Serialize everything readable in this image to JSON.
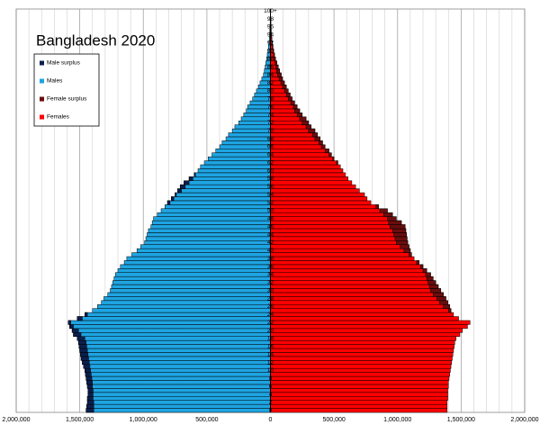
{
  "chart_data": {
    "type": "pyramid",
    "title": "Bangladesh 2020",
    "categories": [
      "0",
      null,
      "2",
      null,
      "4",
      null,
      "6",
      null,
      "8",
      null,
      "10",
      null,
      "12",
      null,
      "14",
      null,
      "16",
      null,
      "18",
      null,
      "20",
      null,
      "22",
      null,
      "24",
      null,
      "26",
      null,
      "28",
      null,
      "30",
      null,
      "32",
      null,
      "34",
      null,
      "36",
      null,
      "38",
      null,
      "40",
      null,
      "42",
      null,
      "44",
      null,
      "46",
      null,
      "48",
      null,
      "50",
      null,
      "52",
      null,
      "54",
      null,
      "56",
      null,
      "58",
      null,
      "60",
      null,
      "62",
      null,
      "64",
      null,
      "66",
      null,
      "68",
      null,
      "70",
      null,
      "72",
      null,
      "74",
      null,
      "76",
      null,
      "78",
      null,
      "80",
      null,
      "82",
      null,
      "84",
      null,
      "86",
      null,
      "88",
      null,
      "90",
      null,
      "92",
      null,
      "94",
      null,
      "96",
      null,
      "98",
      null,
      "100+"
    ],
    "series": [
      {
        "name": "Males",
        "color": "#1ea4e2",
        "side": "left",
        "surplus": {
          "name": "Male surplus",
          "color": "#0b1f4e"
        },
        "values": [
          1450000,
          1445000,
          1440000,
          1440000,
          1435000,
          1435000,
          1440000,
          1445000,
          1450000,
          1455000,
          1460000,
          1470000,
          1480000,
          1490000,
          1495000,
          1500000,
          1505000,
          1510000,
          1520000,
          1550000,
          1560000,
          1580000,
          1590000,
          1520000,
          1460000,
          1400000,
          1360000,
          1330000,
          1310000,
          1280000,
          1260000,
          1250000,
          1240000,
          1230000,
          1220000,
          1200000,
          1180000,
          1150000,
          1130000,
          1090000,
          1050000,
          1020000,
          990000,
          980000,
          970000,
          960000,
          940000,
          930000,
          920000,
          890000,
          860000,
          830000,
          810000,
          780000,
          750000,
          730000,
          710000,
          680000,
          640000,
          600000,
          570000,
          550000,
          520000,
          490000,
          460000,
          430000,
          400000,
          380000,
          350000,
          330000,
          300000,
          280000,
          250000,
          230000,
          210000,
          190000,
          180000,
          160000,
          140000,
          125000,
          110000,
          95000,
          82000,
          68000,
          55000,
          48000,
          42000,
          36000,
          30000,
          25000,
          20000,
          16000,
          12000,
          9000,
          7000,
          5000,
          3500,
          2500,
          1800,
          1200,
          1000
        ]
      },
      {
        "name": "Females",
        "color": "#ff0000",
        "side": "right",
        "surplus": {
          "name": "Female surplus",
          "color": "#6b0d0d"
        },
        "values": [
          1390000,
          1390000,
          1390000,
          1395000,
          1395000,
          1395000,
          1400000,
          1400000,
          1405000,
          1410000,
          1415000,
          1420000,
          1425000,
          1430000,
          1435000,
          1440000,
          1445000,
          1450000,
          1460000,
          1490000,
          1510000,
          1550000,
          1570000,
          1480000,
          1440000,
          1420000,
          1410000,
          1395000,
          1380000,
          1360000,
          1340000,
          1320000,
          1300000,
          1280000,
          1260000,
          1230000,
          1200000,
          1170000,
          1130000,
          1110000,
          1100000,
          1090000,
          1080000,
          1075000,
          1070000,
          1065000,
          1060000,
          1030000,
          990000,
          960000,
          920000,
          850000,
          790000,
          760000,
          740000,
          700000,
          670000,
          640000,
          610000,
          590000,
          570000,
          550000,
          530000,
          500000,
          480000,
          460000,
          430000,
          410000,
          390000,
          370000,
          350000,
          320000,
          300000,
          280000,
          250000,
          230000,
          210000,
          190000,
          170000,
          155000,
          140000,
          125000,
          110000,
          95000,
          85000,
          72000,
          62000,
          50000,
          40000,
          32000,
          25000,
          20000,
          15000,
          11000,
          8500,
          6000,
          5000,
          3500,
          2500,
          1800,
          2000
        ]
      }
    ],
    "xlim": [
      -2000000,
      2000000
    ],
    "xticks": [
      {
        "value": -2000000,
        "label": "2,000,000"
      },
      {
        "value": -1500000,
        "label": "1,500,000"
      },
      {
        "value": -1000000,
        "label": "1,000,000"
      },
      {
        "value": -500000,
        "label": "500,000"
      },
      0,
      {
        "value": 500000,
        "label": "500,000"
      },
      {
        "value": 1000000,
        "label": "1,000,000"
      },
      {
        "value": 1500000,
        "label": "1,500,000"
      },
      {
        "value": 2000000,
        "label": "2,000,000"
      }
    ],
    "minor_grid": 100000,
    "grid": true,
    "legend": "top-left"
  }
}
